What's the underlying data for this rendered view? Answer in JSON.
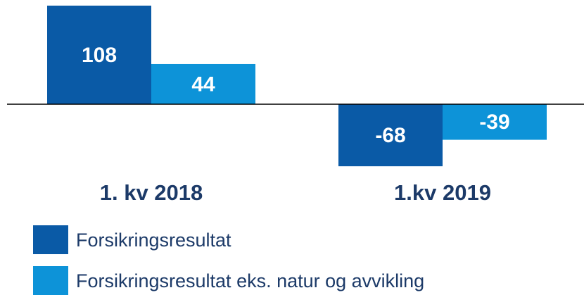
{
  "chart_data": {
    "type": "bar",
    "categories": [
      "1. kv 2018",
      "1.kv 2019"
    ],
    "series": [
      {
        "name": "Forsikringsresultat",
        "color": "#0a5aa6",
        "values": [
          108,
          -68
        ]
      },
      {
        "name": "Forsikringsresultat eks. natur og avvikling",
        "color": "#0d93d8",
        "values": [
          44,
          -39
        ]
      }
    ]
  }
}
